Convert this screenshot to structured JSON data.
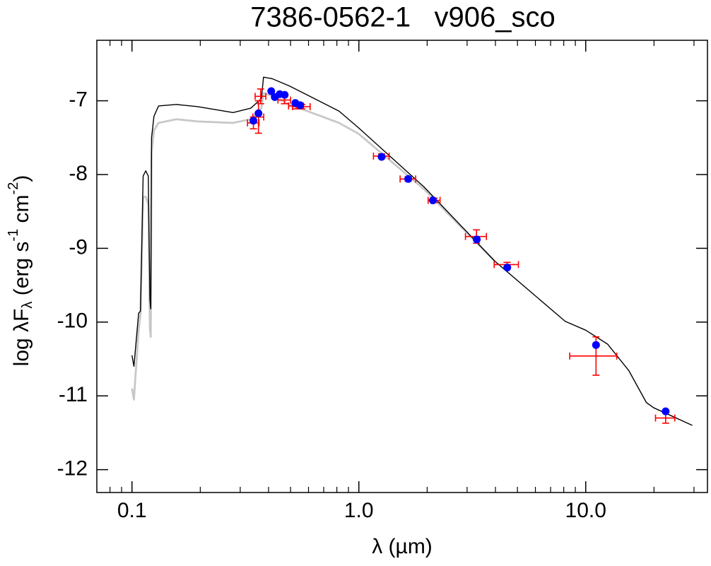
{
  "chart_data": {
    "type": "scatter",
    "title": "7386-0562-1   v906_sco",
    "xlabel": "λ (µm)",
    "ylabel": [
      "log λF",
      "λ",
      " (erg s",
      "-1",
      " cm",
      "-2",
      ")"
    ],
    "xscale": "log",
    "xlim": [
      0.07,
      34.4
    ],
    "ylim": [
      -12.31,
      -6.18
    ],
    "xticks": [
      0.1,
      {
        "value": 1,
        "label": "1.0"
      },
      {
        "value": 10,
        "label": "10.0"
      }
    ],
    "xminorticks": [
      0.08,
      0.09,
      0.2,
      0.3,
      0.4,
      0.5,
      0.6,
      0.7,
      0.8,
      0.9,
      2,
      3,
      4,
      5,
      6,
      7,
      8,
      9,
      20,
      30
    ],
    "yticks": [
      -7,
      -8,
      -9,
      -10,
      -11,
      -12
    ],
    "series": [
      {
        "kind": "line",
        "color": "#c8c8c8",
        "x": [
          0.1,
          0.102,
          0.107,
          0.109,
          0.112,
          0.115,
          0.118,
          0.12,
          0.121,
          0.122,
          0.125,
          0.131,
          0.157,
          0.195,
          0.279,
          0.334,
          0.372,
          0.38,
          0.414,
          0.495,
          0.818,
          1.0,
          1.94,
          3.96
        ],
        "values": [
          -10.9,
          -11.05,
          -10.1,
          -9.9,
          -8.3,
          -8.3,
          -8.4,
          -10.1,
          -10.2,
          -7.7,
          -7.4,
          -7.3,
          -7.25,
          -7.28,
          -7.3,
          -7.25,
          -7.1,
          -6.9,
          -6.93,
          -7.05,
          -7.3,
          -7.45,
          -8.2,
          -9.17
        ]
      },
      {
        "kind": "line",
        "color": "#000000",
        "x": [
          0.1,
          0.102,
          0.107,
          0.109,
          0.112,
          0.115,
          0.118,
          0.12,
          0.121,
          0.122,
          0.125,
          0.131,
          0.157,
          0.195,
          0.279,
          0.334,
          0.372,
          0.38,
          0.414,
          0.495,
          0.818,
          1.0,
          1.94,
          3.96,
          8.12,
          10,
          12.5,
          15.5,
          18.5,
          19.9,
          29.5
        ],
        "values": [
          -10.45,
          -10.6,
          -9.88,
          -9.85,
          -8.02,
          -7.95,
          -8.02,
          -9.7,
          -9.82,
          -7.5,
          -7.21,
          -7.07,
          -7.05,
          -7.08,
          -7.16,
          -7.1,
          -6.97,
          -6.68,
          -6.7,
          -6.8,
          -7.14,
          -7.37,
          -8.17,
          -9.17,
          -9.99,
          -10.11,
          -10.3,
          -10.66,
          -11.09,
          -11.16,
          -11.4
        ]
      },
      {
        "kind": "errorbar",
        "color": "#ff0000",
        "x": [
          0.343,
          0.361,
          0.369,
          0.47,
          0.53,
          0.56,
          1.26,
          1.65,
          2.15,
          3.3,
          4.5,
          11.1,
          22.5
        ],
        "values": [
          -7.3,
          -7.22,
          -6.94,
          -6.99,
          -7.07,
          -7.08,
          -7.75,
          -8.06,
          -8.35,
          -8.84,
          -9.22,
          -10.46,
          -11.3
        ],
        "yerr": [
          0.08,
          0.22,
          0.1,
          0.05,
          0.04,
          0.03,
          0.03,
          0.03,
          0.03,
          0.09,
          0.03,
          0.26,
          0.07
        ],
        "xerr": [
          0.02,
          0.02,
          0.02,
          0.03,
          0.04,
          0.05,
          0.1,
          0.13,
          0.13,
          0.35,
          0.55,
          2.6,
          2.2
        ]
      },
      {
        "kind": "scatter",
        "color": "#0000ff",
        "x": [
          0.343,
          0.361,
          0.411,
          0.426,
          0.448,
          0.471,
          0.525,
          0.551,
          1.26,
          1.65,
          2.12,
          3.31,
          4.51,
          11.1,
          22.5
        ],
        "values": [
          -7.27,
          -7.17,
          -6.87,
          -6.95,
          -6.91,
          -6.92,
          -7.03,
          -7.06,
          -7.76,
          -8.06,
          -8.35,
          -8.88,
          -9.26,
          -10.31,
          -11.21
        ]
      }
    ]
  }
}
